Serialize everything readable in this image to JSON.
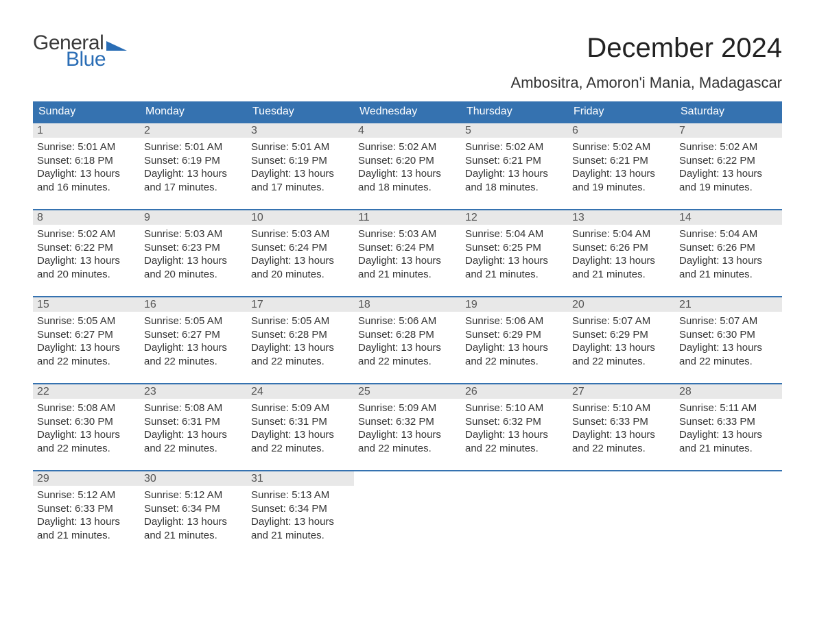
{
  "brand": {
    "text_general": "General",
    "text_blue": "Blue",
    "color_general": "#3a3a3a",
    "color_blue": "#2a6db5"
  },
  "header": {
    "title": "December 2024",
    "location": "Ambositra, Amoron'i Mania, Madagascar",
    "title_fontsize": 40,
    "location_fontsize": 22,
    "title_color": "#222222"
  },
  "calendar": {
    "header_bg": "#3572b0",
    "header_text_color": "#ffffff",
    "daynum_bg": "#e8e8e8",
    "divider_color": "#3572b0",
    "body_text_color": "#333333",
    "body_fontsize": 15,
    "weekdays": [
      "Sunday",
      "Monday",
      "Tuesday",
      "Wednesday",
      "Thursday",
      "Friday",
      "Saturday"
    ],
    "weeks": [
      [
        {
          "day": "1",
          "sunrise": "Sunrise: 5:01 AM",
          "sunset": "Sunset: 6:18 PM",
          "daylight1": "Daylight: 13 hours",
          "daylight2": "and 16 minutes."
        },
        {
          "day": "2",
          "sunrise": "Sunrise: 5:01 AM",
          "sunset": "Sunset: 6:19 PM",
          "daylight1": "Daylight: 13 hours",
          "daylight2": "and 17 minutes."
        },
        {
          "day": "3",
          "sunrise": "Sunrise: 5:01 AM",
          "sunset": "Sunset: 6:19 PM",
          "daylight1": "Daylight: 13 hours",
          "daylight2": "and 17 minutes."
        },
        {
          "day": "4",
          "sunrise": "Sunrise: 5:02 AM",
          "sunset": "Sunset: 6:20 PM",
          "daylight1": "Daylight: 13 hours",
          "daylight2": "and 18 minutes."
        },
        {
          "day": "5",
          "sunrise": "Sunrise: 5:02 AM",
          "sunset": "Sunset: 6:21 PM",
          "daylight1": "Daylight: 13 hours",
          "daylight2": "and 18 minutes."
        },
        {
          "day": "6",
          "sunrise": "Sunrise: 5:02 AM",
          "sunset": "Sunset: 6:21 PM",
          "daylight1": "Daylight: 13 hours",
          "daylight2": "and 19 minutes."
        },
        {
          "day": "7",
          "sunrise": "Sunrise: 5:02 AM",
          "sunset": "Sunset: 6:22 PM",
          "daylight1": "Daylight: 13 hours",
          "daylight2": "and 19 minutes."
        }
      ],
      [
        {
          "day": "8",
          "sunrise": "Sunrise: 5:02 AM",
          "sunset": "Sunset: 6:22 PM",
          "daylight1": "Daylight: 13 hours",
          "daylight2": "and 20 minutes."
        },
        {
          "day": "9",
          "sunrise": "Sunrise: 5:03 AM",
          "sunset": "Sunset: 6:23 PM",
          "daylight1": "Daylight: 13 hours",
          "daylight2": "and 20 minutes."
        },
        {
          "day": "10",
          "sunrise": "Sunrise: 5:03 AM",
          "sunset": "Sunset: 6:24 PM",
          "daylight1": "Daylight: 13 hours",
          "daylight2": "and 20 minutes."
        },
        {
          "day": "11",
          "sunrise": "Sunrise: 5:03 AM",
          "sunset": "Sunset: 6:24 PM",
          "daylight1": "Daylight: 13 hours",
          "daylight2": "and 21 minutes."
        },
        {
          "day": "12",
          "sunrise": "Sunrise: 5:04 AM",
          "sunset": "Sunset: 6:25 PM",
          "daylight1": "Daylight: 13 hours",
          "daylight2": "and 21 minutes."
        },
        {
          "day": "13",
          "sunrise": "Sunrise: 5:04 AM",
          "sunset": "Sunset: 6:26 PM",
          "daylight1": "Daylight: 13 hours",
          "daylight2": "and 21 minutes."
        },
        {
          "day": "14",
          "sunrise": "Sunrise: 5:04 AM",
          "sunset": "Sunset: 6:26 PM",
          "daylight1": "Daylight: 13 hours",
          "daylight2": "and 21 minutes."
        }
      ],
      [
        {
          "day": "15",
          "sunrise": "Sunrise: 5:05 AM",
          "sunset": "Sunset: 6:27 PM",
          "daylight1": "Daylight: 13 hours",
          "daylight2": "and 22 minutes."
        },
        {
          "day": "16",
          "sunrise": "Sunrise: 5:05 AM",
          "sunset": "Sunset: 6:27 PM",
          "daylight1": "Daylight: 13 hours",
          "daylight2": "and 22 minutes."
        },
        {
          "day": "17",
          "sunrise": "Sunrise: 5:05 AM",
          "sunset": "Sunset: 6:28 PM",
          "daylight1": "Daylight: 13 hours",
          "daylight2": "and 22 minutes."
        },
        {
          "day": "18",
          "sunrise": "Sunrise: 5:06 AM",
          "sunset": "Sunset: 6:28 PM",
          "daylight1": "Daylight: 13 hours",
          "daylight2": "and 22 minutes."
        },
        {
          "day": "19",
          "sunrise": "Sunrise: 5:06 AM",
          "sunset": "Sunset: 6:29 PM",
          "daylight1": "Daylight: 13 hours",
          "daylight2": "and 22 minutes."
        },
        {
          "day": "20",
          "sunrise": "Sunrise: 5:07 AM",
          "sunset": "Sunset: 6:29 PM",
          "daylight1": "Daylight: 13 hours",
          "daylight2": "and 22 minutes."
        },
        {
          "day": "21",
          "sunrise": "Sunrise: 5:07 AM",
          "sunset": "Sunset: 6:30 PM",
          "daylight1": "Daylight: 13 hours",
          "daylight2": "and 22 minutes."
        }
      ],
      [
        {
          "day": "22",
          "sunrise": "Sunrise: 5:08 AM",
          "sunset": "Sunset: 6:30 PM",
          "daylight1": "Daylight: 13 hours",
          "daylight2": "and 22 minutes."
        },
        {
          "day": "23",
          "sunrise": "Sunrise: 5:08 AM",
          "sunset": "Sunset: 6:31 PM",
          "daylight1": "Daylight: 13 hours",
          "daylight2": "and 22 minutes."
        },
        {
          "day": "24",
          "sunrise": "Sunrise: 5:09 AM",
          "sunset": "Sunset: 6:31 PM",
          "daylight1": "Daylight: 13 hours",
          "daylight2": "and 22 minutes."
        },
        {
          "day": "25",
          "sunrise": "Sunrise: 5:09 AM",
          "sunset": "Sunset: 6:32 PM",
          "daylight1": "Daylight: 13 hours",
          "daylight2": "and 22 minutes."
        },
        {
          "day": "26",
          "sunrise": "Sunrise: 5:10 AM",
          "sunset": "Sunset: 6:32 PM",
          "daylight1": "Daylight: 13 hours",
          "daylight2": "and 22 minutes."
        },
        {
          "day": "27",
          "sunrise": "Sunrise: 5:10 AM",
          "sunset": "Sunset: 6:33 PM",
          "daylight1": "Daylight: 13 hours",
          "daylight2": "and 22 minutes."
        },
        {
          "day": "28",
          "sunrise": "Sunrise: 5:11 AM",
          "sunset": "Sunset: 6:33 PM",
          "daylight1": "Daylight: 13 hours",
          "daylight2": "and 21 minutes."
        }
      ],
      [
        {
          "day": "29",
          "sunrise": "Sunrise: 5:12 AM",
          "sunset": "Sunset: 6:33 PM",
          "daylight1": "Daylight: 13 hours",
          "daylight2": "and 21 minutes."
        },
        {
          "day": "30",
          "sunrise": "Sunrise: 5:12 AM",
          "sunset": "Sunset: 6:34 PM",
          "daylight1": "Daylight: 13 hours",
          "daylight2": "and 21 minutes."
        },
        {
          "day": "31",
          "sunrise": "Sunrise: 5:13 AM",
          "sunset": "Sunset: 6:34 PM",
          "daylight1": "Daylight: 13 hours",
          "daylight2": "and 21 minutes."
        },
        {
          "empty": true
        },
        {
          "empty": true
        },
        {
          "empty": true
        },
        {
          "empty": true
        }
      ]
    ]
  }
}
